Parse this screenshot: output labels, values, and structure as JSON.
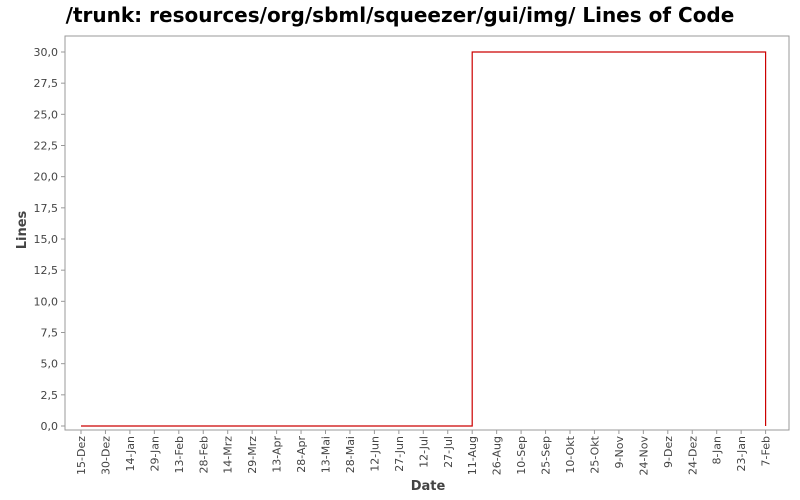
{
  "chart_data": {
    "type": "line",
    "title": "/trunk: resources/org/sbml/squeezer/gui/img/ Lines of Code",
    "xlabel": "Date",
    "ylabel": "Lines",
    "ylim": [
      0,
      31
    ],
    "y_ticks": [
      "0,0",
      "2,5",
      "5,0",
      "7,5",
      "10,0",
      "12,5",
      "15,0",
      "17,5",
      "20,0",
      "22,5",
      "25,0",
      "27,5",
      "30,0"
    ],
    "y_tick_values": [
      0,
      2.5,
      5,
      7.5,
      10,
      12.5,
      15,
      17.5,
      20,
      22.5,
      25,
      27.5,
      30
    ],
    "categories": [
      "15-Dez",
      "30-Dez",
      "14-Jan",
      "29-Jan",
      "13-Feb",
      "28-Feb",
      "14-Mrz",
      "29-Mrz",
      "13-Apr",
      "28-Apr",
      "13-Mai",
      "28-Mai",
      "12-Jun",
      "27-Jun",
      "12-Jul",
      "27-Jul",
      "11-Aug",
      "26-Aug",
      "10-Sep",
      "25-Sep",
      "10-Okt",
      "25-Okt",
      "9-Nov",
      "24-Nov",
      "9-Dez",
      "24-Dez",
      "8-Jan",
      "23-Jan",
      "7-Feb"
    ],
    "grid": false,
    "series": [
      {
        "color": "#cc0000",
        "points": [
          {
            "x": "15-Dez",
            "y": 0
          },
          {
            "x": "11-Aug",
            "y": 0
          },
          {
            "x": "11-Aug",
            "y": 30
          },
          {
            "x": "7-Feb",
            "y": 30
          },
          {
            "x": "7-Feb",
            "y": 0
          }
        ]
      }
    ]
  }
}
